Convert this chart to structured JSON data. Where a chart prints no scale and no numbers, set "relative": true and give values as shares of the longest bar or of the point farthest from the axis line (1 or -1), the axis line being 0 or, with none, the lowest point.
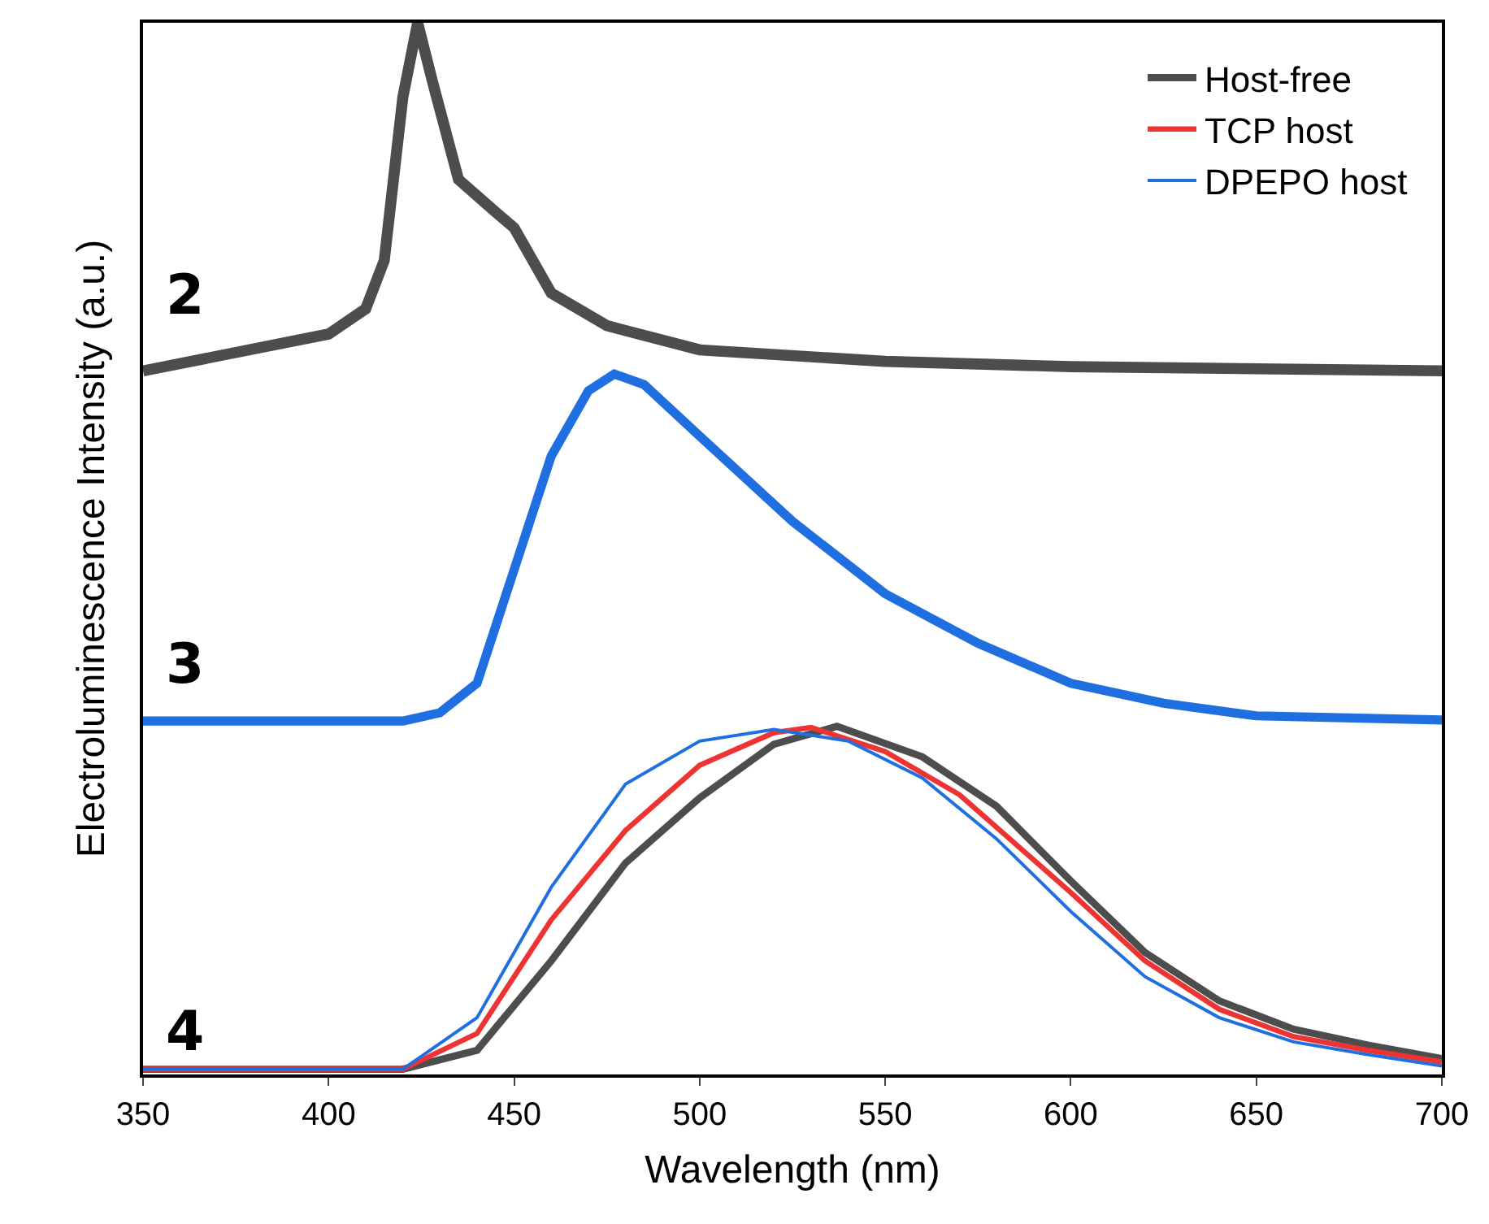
{
  "chart_data": {
    "type": "line",
    "relative": true,
    "xlabel": "Wavelength (nm)",
    "ylabel": "Electroluminescence Intensity (a.u.)",
    "xlim": [
      350,
      700
    ],
    "xticks": [
      350,
      400,
      450,
      500,
      550,
      600,
      650,
      700
    ],
    "tick_labels": "x",
    "legend": "top right",
    "marker": "none",
    "line_style": "solid",
    "series": [
      {
        "color": "#4d4d4d",
        "x": [
          350,
          400,
          410,
          415,
          420,
          424,
          428,
          435,
          445,
          450,
          460,
          475,
          500,
          550,
          600,
          700
        ],
        "values": [
          0.669,
          0.704,
          0.728,
          0.774,
          0.929,
          1.0,
          0.944,
          0.851,
          0.82,
          0.805,
          0.743,
          0.712,
          0.689,
          0.678,
          0.673,
          0.669
        ]
      },
      {
        "color": "#1f6fe0",
        "x": [
          350,
          420,
          430,
          440,
          450,
          460,
          470,
          477,
          485,
          500,
          525,
          550,
          575,
          600,
          625,
          650,
          700
        ],
        "values": [
          0.336,
          0.336,
          0.344,
          0.372,
          0.48,
          0.588,
          0.65,
          0.666,
          0.656,
          0.607,
          0.526,
          0.457,
          0.41,
          0.372,
          0.353,
          0.341,
          0.337
        ]
      },
      {
        "name": "Host-free",
        "color": "#4d4d4d",
        "x": [
          350,
          420,
          440,
          460,
          480,
          500,
          520,
          537,
          560,
          580,
          600,
          620,
          640,
          660,
          680,
          700
        ],
        "values": [
          0.005,
          0.005,
          0.023,
          0.108,
          0.201,
          0.263,
          0.314,
          0.331,
          0.302,
          0.255,
          0.184,
          0.116,
          0.07,
          0.043,
          0.028,
          0.015
        ]
      },
      {
        "name": "TCP host",
        "color": "#ee3333",
        "x": [
          350,
          420,
          440,
          460,
          480,
          500,
          520,
          530,
          550,
          570,
          600,
          620,
          640,
          660,
          680,
          700
        ],
        "values": [
          0.005,
          0.005,
          0.039,
          0.147,
          0.232,
          0.294,
          0.325,
          0.33,
          0.307,
          0.266,
          0.173,
          0.108,
          0.062,
          0.036,
          0.023,
          0.012
        ]
      },
      {
        "name": "DPEPO host",
        "color": "#1f6fe0",
        "x": [
          350,
          420,
          440,
          460,
          480,
          500,
          520,
          540,
          560,
          580,
          600,
          620,
          640,
          660,
          680,
          700
        ],
        "values": [
          0.005,
          0.005,
          0.054,
          0.178,
          0.276,
          0.317,
          0.328,
          0.317,
          0.282,
          0.224,
          0.155,
          0.093,
          0.054,
          0.031,
          0.019,
          0.008
        ]
      }
    ],
    "annotations": [
      "2",
      "3",
      "4"
    ]
  }
}
